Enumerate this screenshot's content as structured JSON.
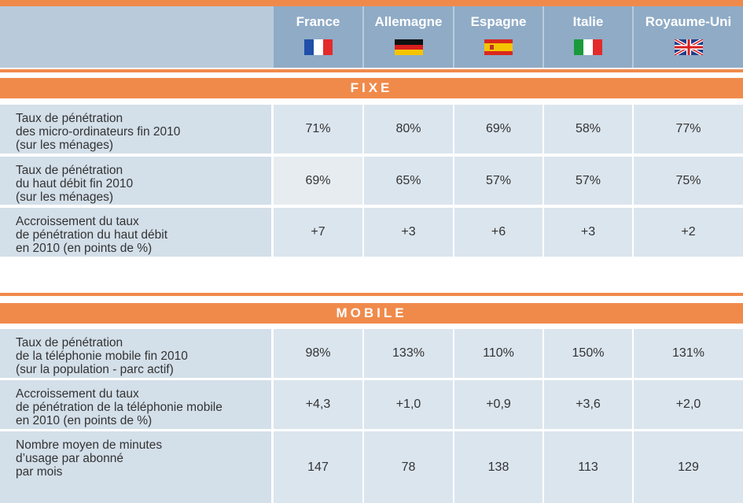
{
  "header": {
    "columns": [
      "France",
      "Allemagne",
      "Espagne",
      "Italie",
      "Royaume-Uni"
    ]
  },
  "sections": [
    {
      "title": "FIXE",
      "rows": [
        {
          "label": [
            "Taux de pénétration",
            "des micro-ordinateurs fin 2010",
            "(sur les ménages)"
          ],
          "values": [
            "71%",
            "80%",
            "69%",
            "58%",
            "77%"
          ]
        },
        {
          "label": [
            "Taux de pénétration",
            "du haut débit fin 2010",
            "(sur les ménages)"
          ],
          "values": [
            "69%",
            "65%",
            "57%",
            "57%",
            "75%"
          ]
        },
        {
          "label": [
            "Accroissement du taux",
            "de pénétration du haut débit",
            "en 2010 (en points de %)"
          ],
          "values": [
            "+7",
            "+3",
            "+6",
            "+3",
            "+2"
          ]
        }
      ]
    },
    {
      "title": "MOBILE",
      "rows": [
        {
          "label": [
            "Taux de pénétration",
            "de la téléphonie mobile fin 2010",
            "(sur la population - parc actif)"
          ],
          "values": [
            "98%",
            "133%",
            "110%",
            "150%",
            "131%"
          ]
        },
        {
          "label": [
            "Accroissement du taux",
            "de pénétration de la téléphonie mobile",
            "en 2010 (en points de %)"
          ],
          "values": [
            "+4,3",
            "+1,0",
            "+0,9",
            "+3,6",
            "+2,0"
          ]
        },
        {
          "label": [
            "Nombre moyen de minutes",
            "d’usage par abonné",
            "par mois"
          ],
          "values": [
            "147",
            "78",
            "138",
            "113",
            "129"
          ]
        }
      ]
    }
  ]
}
